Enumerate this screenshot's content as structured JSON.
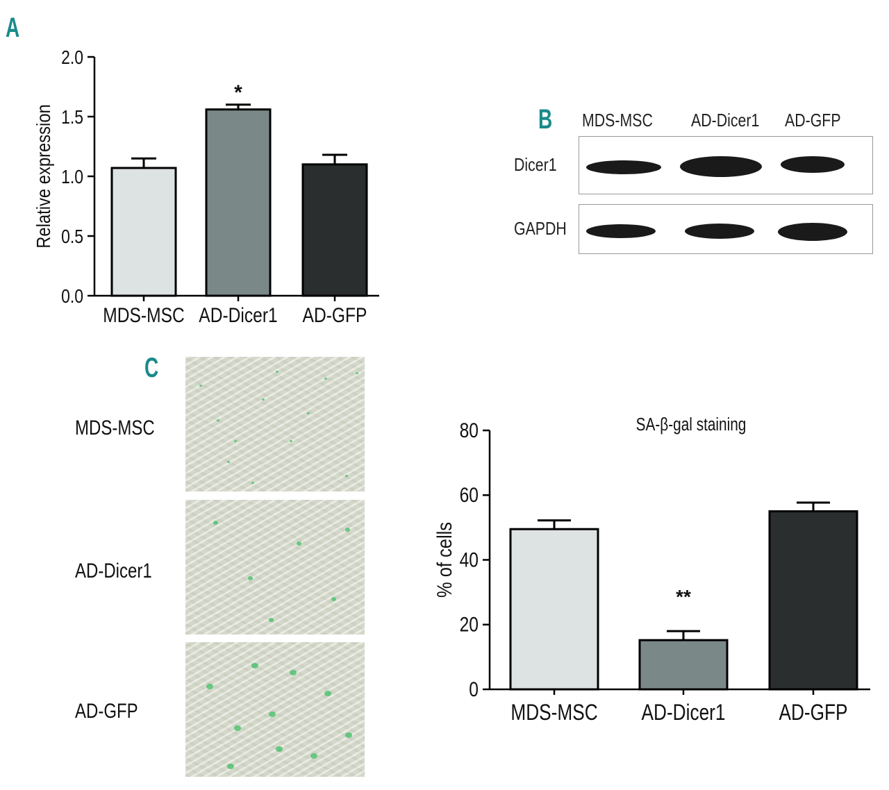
{
  "panels": {
    "a_letter": "A",
    "b_letter": "B",
    "c_letter": "C"
  },
  "colors": {
    "panel_letter": "#1a8a8a",
    "bar_light": "#dde3e2",
    "bar_mid": "#7a8888",
    "bar_dark": "#2a2e2e",
    "stain_green": "#3fbf66"
  },
  "chart_data": [
    {
      "id": "A",
      "type": "bar",
      "categories": [
        "MDS-MSC",
        "AD-Dicer1",
        "AD-GFP"
      ],
      "values": [
        1.07,
        1.56,
        1.1
      ],
      "errors": [
        0.08,
        0.04,
        0.08
      ],
      "annotations": [
        "",
        "*",
        ""
      ],
      "title": "",
      "xlabel": "",
      "ylabel": "Relative expression",
      "ylim": [
        0,
        2.0
      ],
      "yticks": [
        "0.0",
        "0.5",
        "1.0",
        "1.5",
        "2.0"
      ],
      "ytick_values": [
        0,
        0.5,
        1.0,
        1.5,
        2.0
      ],
      "grid": false
    },
    {
      "id": "C",
      "type": "bar",
      "categories": [
        "MDS-MSC",
        "AD-Dicer1",
        "AD-GFP"
      ],
      "values": [
        49.5,
        15.2,
        55.0
      ],
      "errors": [
        2.7,
        2.8,
        2.7
      ],
      "annotations": [
        "",
        "**",
        ""
      ],
      "title": "SA-β-gal staining",
      "xlabel": "",
      "ylabel": "% of cells",
      "ylim": [
        0,
        80
      ],
      "yticks": [
        "0",
        "20",
        "40",
        "60",
        "80"
      ],
      "ytick_values": [
        0,
        20,
        40,
        60,
        80
      ],
      "grid": false
    }
  ],
  "blot": {
    "columns": [
      "MDS-MSC",
      "AD-Dicer1",
      "AD-GFP"
    ],
    "rows": [
      "Dicer1",
      "GAPDH"
    ]
  },
  "micrographs": {
    "rows": [
      "MDS-MSC",
      "AD-Dicer1",
      "AD-GFP"
    ]
  }
}
